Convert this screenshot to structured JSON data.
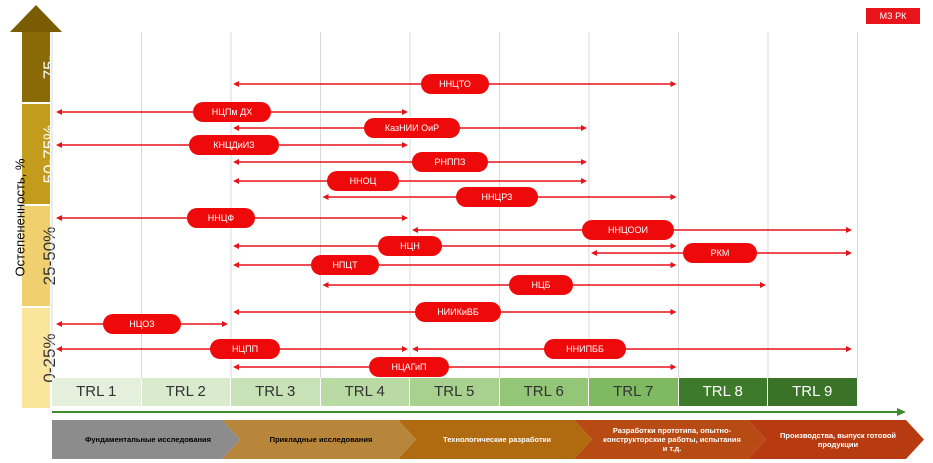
{
  "badge": "МЗ РК",
  "y_axis_title": "Остепененность, %",
  "y_segments": [
    {
      "label": "75-",
      "color": "#8a6a06"
    },
    {
      "label": "50-75%",
      "color": "#c39b1d"
    },
    {
      "label": "25-50%",
      "color": "#f0cf6f"
    },
    {
      "label": "0-25%",
      "color": "#fbe59d"
    }
  ],
  "trl_levels": [
    {
      "label": "TRL 1",
      "bg": "#e4f0dc",
      "fg": "#333333"
    },
    {
      "label": "TRL 2",
      "bg": "#d8ebcd",
      "fg": "#333333"
    },
    {
      "label": "TRL 3",
      "bg": "#c8e2b7",
      "fg": "#333333"
    },
    {
      "label": "TRL 4",
      "bg": "#b9daa3",
      "fg": "#333333"
    },
    {
      "label": "TRL 5",
      "bg": "#a8d18f",
      "fg": "#333333"
    },
    {
      "label": "TRL 6",
      "bg": "#93c677",
      "fg": "#333333"
    },
    {
      "label": "TRL 7",
      "bg": "#7fba62",
      "fg": "#333333"
    },
    {
      "label": "TRL 8",
      "bg": "#3d7a2a",
      "fg": "#ffffff"
    },
    {
      "label": "TRL 9",
      "bg": "#3a7227",
      "fg": "#ffffff"
    }
  ],
  "ranges": [
    {
      "label": "ННЦТО",
      "from": 3,
      "to": 7
    },
    {
      "label": "НЦПм ДХ",
      "from": 1,
      "to": 4
    },
    {
      "label": "КазНИИ ОиР",
      "from": 3,
      "to": 6
    },
    {
      "label": "КНЦДиИЗ",
      "from": 1,
      "to": 4
    },
    {
      "label": "РНППЗ",
      "from": 3,
      "to": 6
    },
    {
      "label": "ННОЦ",
      "from": 3,
      "to": 6
    },
    {
      "label": "ННЦРЗ",
      "from": 4,
      "to": 7
    },
    {
      "label": "ННЦФ",
      "from": 1,
      "to": 4
    },
    {
      "label": "ННЦООИ",
      "from": 5,
      "to": 9
    },
    {
      "label": "НЦН",
      "from": 3,
      "to": 7
    },
    {
      "label": "РКМ",
      "from": 7,
      "to": 9
    },
    {
      "label": "НПЦТ",
      "from": 3,
      "to": 7
    },
    {
      "label": "НЦБ",
      "from": 4,
      "to": 8
    },
    {
      "label": "НИИКиВБ",
      "from": 3,
      "to": 7
    },
    {
      "label": "НЦОЗ",
      "from": 1,
      "to": 2
    },
    {
      "label": "НЦПП",
      "from": 1,
      "to": 4
    },
    {
      "label": "ННИПББ",
      "from": 5,
      "to": 9
    },
    {
      "label": "НЦАГиП",
      "from": 3,
      "to": 7
    }
  ],
  "stages": [
    {
      "label": "Фундаментальные исследования",
      "bg": "#8c8c8c",
      "fg": "#000000"
    },
    {
      "label": "Прикладные исследования",
      "bg": "#b8863a",
      "fg": "#000000"
    },
    {
      "label": "Технологические разработки",
      "bg": "#b06a10",
      "fg": "#ffffff"
    },
    {
      "label": "Разработки прототипа, опытно-конструкторские работы, испытания и т.д.",
      "bg": "#b84a14",
      "fg": "#ffffff"
    },
    {
      "label": "Производства, выпуск готовой продукции",
      "bg": "#b83a10",
      "fg": "#ffffff"
    }
  ]
}
